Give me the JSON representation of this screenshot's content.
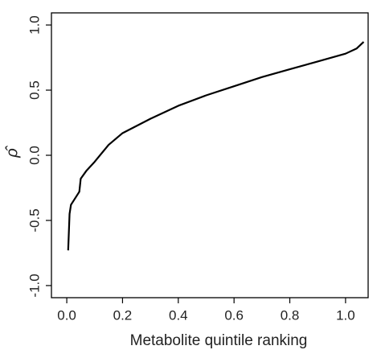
{
  "chart_data": {
    "type": "line",
    "xlabel": "Metabolite quintile ranking",
    "ylabel": "ρ̂",
    "x": [
      0.005,
      0.01,
      0.015,
      0.03,
      0.045,
      0.05,
      0.07,
      0.1,
      0.15,
      0.2,
      0.3,
      0.4,
      0.5,
      0.6,
      0.7,
      0.8,
      0.9,
      1.0,
      1.04,
      1.065
    ],
    "series": [
      {
        "color": "#000000",
        "values": [
          -0.73,
          -0.45,
          -0.38,
          -0.33,
          -0.28,
          -0.18,
          -0.12,
          -0.05,
          0.08,
          0.17,
          0.28,
          0.38,
          0.46,
          0.53,
          0.6,
          0.66,
          0.72,
          0.78,
          0.82,
          0.87
        ]
      }
    ],
    "xlim": [
      -0.055,
      1.081
    ],
    "ylim": [
      -1.093,
      1.093
    ],
    "xticks": [
      {
        "value": 0,
        "label": "0.0"
      },
      0.2,
      0.4,
      0.6,
      0.8,
      {
        "value": 1,
        "label": "1.0"
      }
    ],
    "yticks": [
      {
        "value": -1,
        "label": "-1.0"
      },
      -0.5,
      {
        "value": 0,
        "label": "0.0"
      },
      0.5,
      {
        "value": 1,
        "label": "1.0"
      }
    ]
  }
}
